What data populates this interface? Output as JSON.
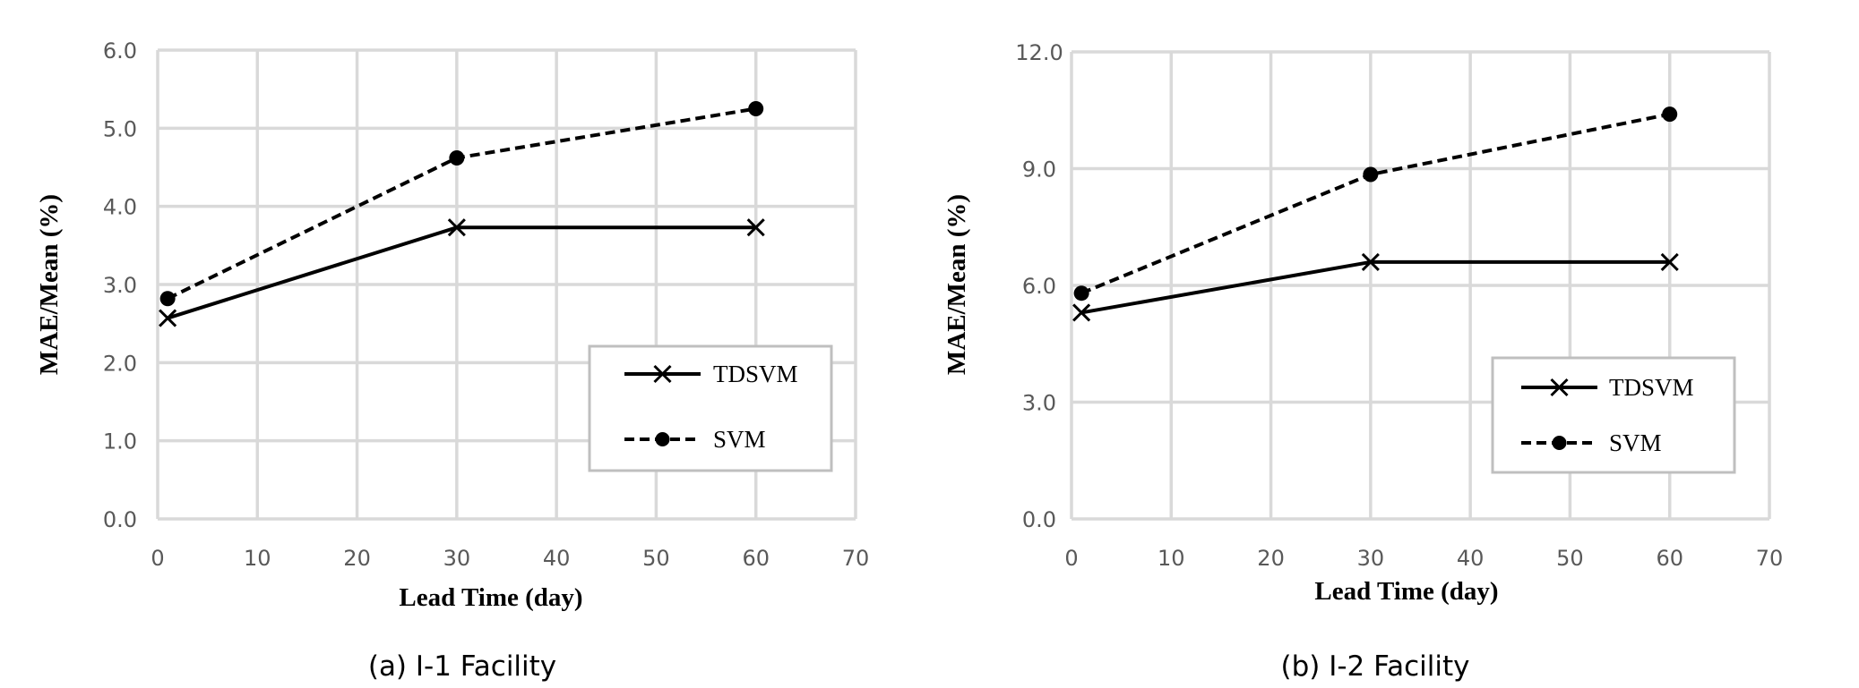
{
  "chart_data": [
    {
      "type": "line",
      "title": "",
      "caption": "(a) I-1 Facility",
      "xlabel": "Lead Time (day)",
      "ylabel": "MAE/Mean (%)",
      "xlim": [
        0,
        70
      ],
      "ylim": [
        0,
        6
      ],
      "xticks": [
        0,
        10,
        20,
        30,
        40,
        50,
        60,
        70
      ],
      "yticks": [
        0,
        1,
        2,
        3,
        4,
        5,
        6
      ],
      "xtick_labels": [
        "0",
        "10",
        "20",
        "30",
        "40",
        "50",
        "60",
        "70"
      ],
      "ytick_labels": [
        "0.0",
        "1.0",
        "2.0",
        "3.0",
        "4.0",
        "5.0",
        "6.0"
      ],
      "grid": true,
      "legend_position": "lower-right",
      "series": [
        {
          "name": "TDSVM",
          "marker": "x",
          "style": "solid",
          "x": [
            1,
            30,
            60
          ],
          "y": [
            2.57,
            3.73,
            3.73
          ]
        },
        {
          "name": "SVM",
          "marker": "circle",
          "style": "dashed",
          "x": [
            1,
            30,
            60
          ],
          "y": [
            2.82,
            4.62,
            5.25
          ]
        }
      ]
    },
    {
      "type": "line",
      "title": "",
      "caption": "(b) I-2 Facility",
      "xlabel": "Lead Time (day)",
      "ylabel": "MAE/Mean (%)",
      "xlim": [
        0,
        70
      ],
      "ylim": [
        0,
        12
      ],
      "xticks": [
        0,
        10,
        20,
        30,
        40,
        50,
        60,
        70
      ],
      "yticks": [
        0,
        3,
        6,
        9,
        12
      ],
      "xtick_labels": [
        "0",
        "10",
        "20",
        "30",
        "40",
        "50",
        "60",
        "70"
      ],
      "ytick_labels": [
        "0.0",
        "3.0",
        "6.0",
        "9.0",
        "12.0"
      ],
      "grid": true,
      "legend_position": "lower-right",
      "series": [
        {
          "name": "TDSVM",
          "marker": "x",
          "style": "solid",
          "x": [
            1,
            30,
            60
          ],
          "y": [
            5.3,
            6.6,
            6.6
          ]
        },
        {
          "name": "SVM",
          "marker": "circle",
          "style": "dashed",
          "x": [
            1,
            30,
            60
          ],
          "y": [
            5.8,
            8.85,
            10.4
          ]
        }
      ]
    }
  ]
}
